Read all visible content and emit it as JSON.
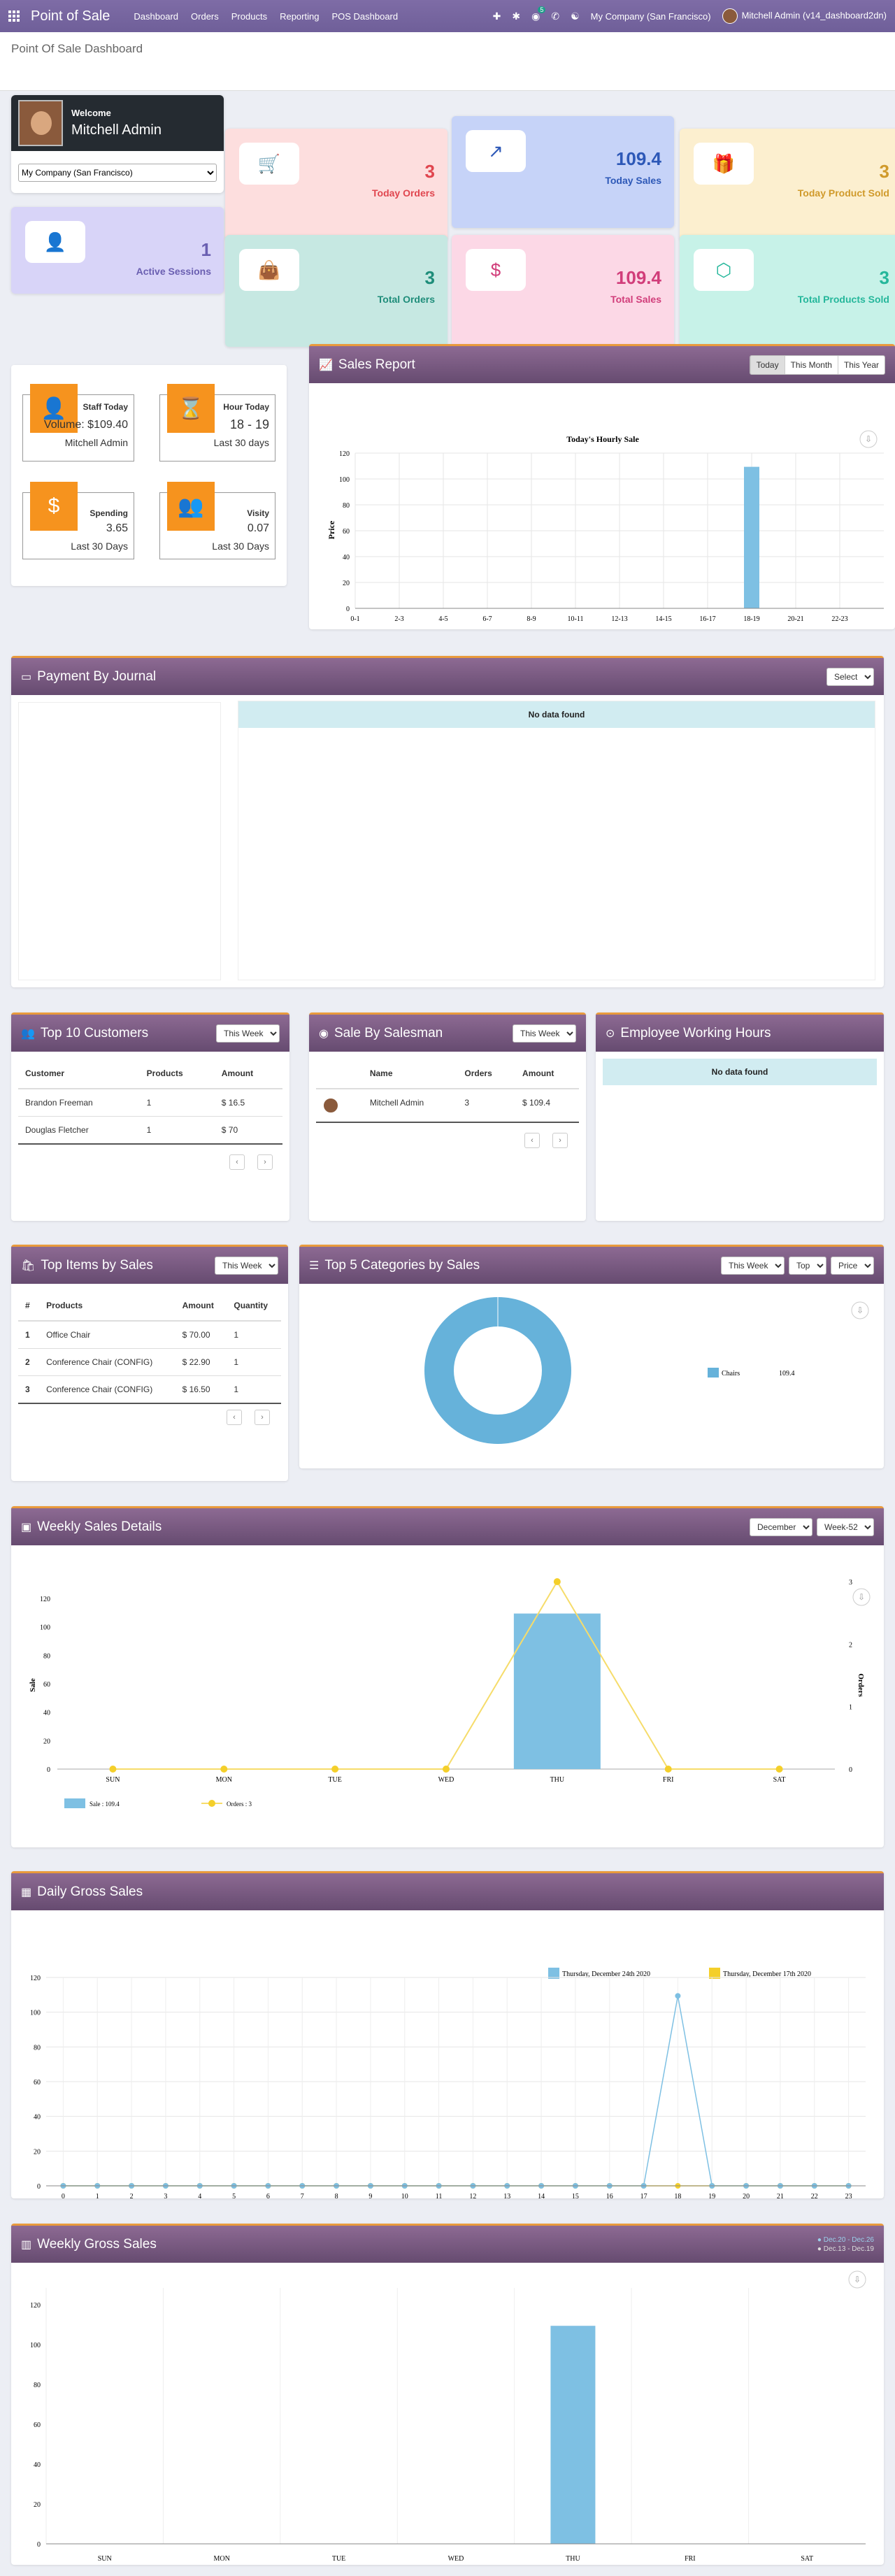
{
  "nav": {
    "app_title": "Point of Sale",
    "links": [
      "Dashboard",
      "Orders",
      "Products",
      "Reporting",
      "POS Dashboard"
    ],
    "chat_count": "5",
    "company": "My Company (San Francisco)",
    "user": "Mitchell Admin (v14_dashboard2dn)"
  },
  "page_title": "Point Of Sale Dashboard",
  "welcome": {
    "greeting": "Welcome",
    "name": "Mitchell Admin",
    "company_select": "My Company (San Francisco)"
  },
  "cards": [
    {
      "value": "3",
      "label": "Today Orders",
      "icon": "cart-icon",
      "color": "#e0464f",
      "bg": "#fddede"
    },
    {
      "value": "109.4",
      "label": "Today Sales",
      "icon": "trend-up-icon",
      "color": "#2d58b7",
      "bg": "#c6d3f8"
    },
    {
      "value": "3",
      "label": "Today Product Sold",
      "icon": "gift-icon",
      "color": "#d09a2b",
      "bg": "#fcefcf"
    },
    {
      "value": "1",
      "label": "Active Sessions",
      "icon": "user-icon",
      "color": "#6a5fb1",
      "bg": "#d8d4f8"
    },
    {
      "value": "3",
      "label": "Total Orders",
      "icon": "bag-icon",
      "color": "#1f8d7a",
      "bg": "#c6e8e2"
    },
    {
      "value": "109.4",
      "label": "Total Sales",
      "icon": "dollar-icon",
      "color": "#d13d7a",
      "bg": "#fcd8e6"
    },
    {
      "value": "3",
      "label": "Total Products Sold",
      "icon": "box-icon",
      "color": "#25b79b",
      "bg": "#c7f2e8"
    }
  ],
  "kpis": {
    "staff_title": "Staff Today",
    "staff_value": "Volume: $109.40",
    "staff_name": "Mitchell Admin",
    "hour_title": "Hour Today",
    "hour_value": "18 - 19",
    "hour_period": "Last 30 days",
    "spend_title": "Spending",
    "spend_value": "3.65",
    "spend_period": "Last 30 Days",
    "visit_title": "Visity",
    "visit_value": "0.07",
    "visit_period": "Last 30 Days"
  },
  "sales_report": {
    "title": "Sales Report",
    "buttons": [
      "Today",
      "This Month",
      "This Year"
    ]
  },
  "hourly_chart": {
    "title": "Today's Hourly Sale",
    "ylabel": "Price",
    "xlabel": "Hours"
  },
  "journal": {
    "title": "Payment By Journal",
    "select": "Select",
    "nodata": "No data found"
  },
  "customers": {
    "title": "Top 10 Customers",
    "filter": "This Week",
    "headers": [
      "Customer",
      "Products",
      "Amount"
    ],
    "rows": [
      [
        "Brandon Freeman",
        "1",
        "$ 16.5"
      ],
      [
        "Douglas Fletcher",
        "1",
        "$ 70"
      ]
    ]
  },
  "salesman": {
    "title": "Sale By Salesman",
    "filter": "This Week",
    "headers": [
      "Name",
      "Orders",
      "Amount"
    ],
    "rows": [
      [
        "Mitchell Admin",
        "3",
        "$ 109.4"
      ]
    ]
  },
  "working": {
    "title": "Employee Working Hours",
    "nodata": "No data found"
  },
  "top_items": {
    "title": "Top Items by Sales",
    "filter": "This Week",
    "headers": [
      "#",
      "Products",
      "Amount",
      "Quantity"
    ],
    "rows": [
      [
        "1",
        "Office Chair",
        "$ 70.00",
        "1"
      ],
      [
        "2",
        "Conference Chair (CONFIG)",
        "$ 22.90",
        "1"
      ],
      [
        "3",
        "Conference Chair (CONFIG)",
        "$ 16.50",
        "1"
      ]
    ]
  },
  "categories": {
    "title": "Top 5 Categories by Sales",
    "filters": [
      "This Week",
      "Top",
      "Price"
    ],
    "legend_label": "Chairs",
    "legend_value": "109.4"
  },
  "weekly_details": {
    "title": "Weekly Sales Details",
    "filters": [
      "December",
      "Week-52"
    ],
    "y1label": "Sale",
    "y2label": "Orders",
    "legend": [
      "Sale : 109.4",
      "Orders : 3"
    ]
  },
  "daily_gross": {
    "title": "Daily Gross Sales",
    "legend": [
      "Thursday, December 24th 2020",
      "Thursday, December 17th 2020"
    ]
  },
  "weekly_gross": {
    "title": "Weekly Gross Sales",
    "legend": [
      "Dec.20 - Dec.26",
      "Dec.13 - Dec.19"
    ]
  },
  "chart_data": [
    {
      "type": "bar",
      "title": "Today's Hourly Sale",
      "xlabel": "Hours",
      "ylabel": "Price",
      "categories": [
        "0-1",
        "2-3",
        "4-5",
        "6-7",
        "8-9",
        "10-11",
        "12-13",
        "14-15",
        "16-17",
        "18-19",
        "20-21",
        "22-23"
      ],
      "values": [
        0,
        0,
        0,
        0,
        0,
        0,
        0,
        0,
        0,
        109.4,
        0,
        0
      ],
      "ylim": [
        0,
        120
      ]
    },
    {
      "type": "pie",
      "series": [
        {
          "name": "Chairs",
          "values": [
            109.4
          ]
        }
      ],
      "categories": [
        "Chairs"
      ]
    },
    {
      "type": "bar",
      "categories": [
        "SUN",
        "MON",
        "TUE",
        "WED",
        "THU",
        "FRI",
        "SAT"
      ],
      "series": [
        {
          "name": "Sale",
          "values": [
            0,
            0,
            0,
            0,
            109.4,
            0,
            0
          ]
        },
        {
          "name": "Orders",
          "values": [
            0,
            0,
            0,
            0,
            3,
            0,
            0
          ]
        }
      ],
      "ylim": [
        0,
        120
      ],
      "y2lim": [
        0,
        3
      ]
    },
    {
      "type": "line",
      "x": [
        0,
        1,
        2,
        3,
        4,
        5,
        6,
        7,
        8,
        9,
        10,
        11,
        12,
        13,
        14,
        15,
        16,
        17,
        18,
        19,
        20,
        21,
        22,
        23
      ],
      "series": [
        {
          "name": "Thursday, December 24th 2020",
          "values": [
            0,
            0,
            0,
            0,
            0,
            0,
            0,
            0,
            0,
            0,
            0,
            0,
            0,
            0,
            0,
            0,
            0,
            0,
            109.4,
            0,
            0,
            0,
            0,
            0
          ]
        },
        {
          "name": "Thursday, December 17th 2020",
          "values": [
            0,
            0,
            0,
            0,
            0,
            0,
            0,
            0,
            0,
            0,
            0,
            0,
            0,
            0,
            0,
            0,
            0,
            0,
            0,
            0,
            0,
            0,
            0,
            0
          ]
        }
      ],
      "ylim": [
        0,
        120
      ]
    },
    {
      "type": "bar",
      "categories": [
        "SUN",
        "MON",
        "TUE",
        "WED",
        "THU",
        "FRI",
        "SAT"
      ],
      "series": [
        {
          "name": "Dec.20 - Dec.26",
          "values": [
            0,
            0,
            0,
            0,
            109.4,
            0,
            0
          ]
        },
        {
          "name": "Dec.13 - Dec.19",
          "values": [
            0,
            0,
            0,
            0,
            0,
            0,
            0
          ]
        }
      ],
      "ylim": [
        0,
        120
      ]
    }
  ]
}
